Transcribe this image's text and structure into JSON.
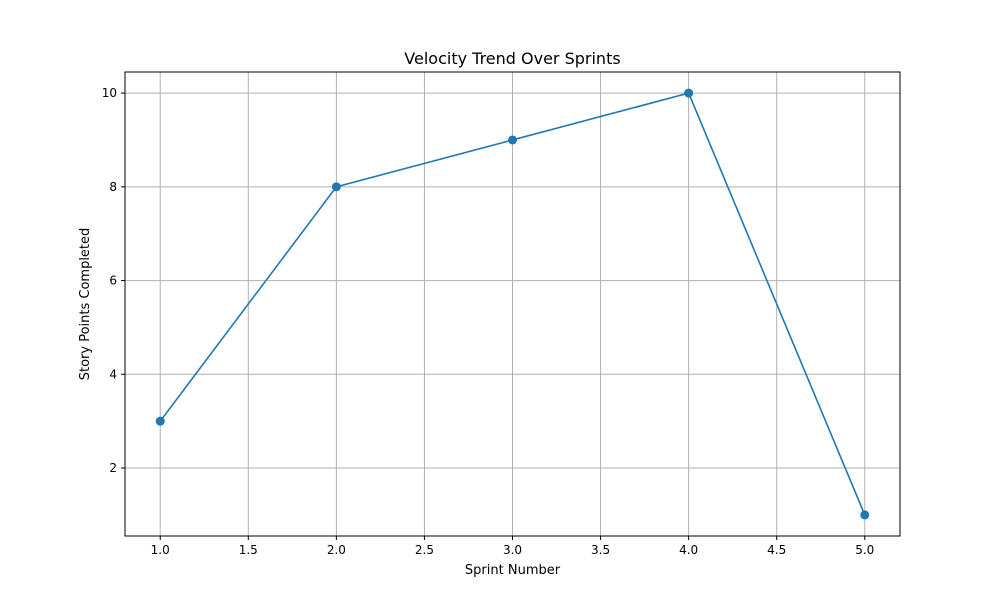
{
  "chart_data": {
    "type": "line",
    "title": "Velocity Trend Over Sprints",
    "xlabel": "Sprint Number",
    "ylabel": "Story Points Completed",
    "x": [
      1,
      2,
      3,
      4,
      5
    ],
    "series": [
      {
        "values": [
          3,
          8,
          9,
          10,
          1
        ],
        "color": "#1f77b4",
        "marker": "circle"
      }
    ],
    "xlim": [
      0.8,
      5.2
    ],
    "ylim": [
      0.55,
      10.45
    ],
    "xticks": [
      1.0,
      1.5,
      2.0,
      2.5,
      3.0,
      3.5,
      4.0,
      4.5,
      5.0
    ],
    "xtick_labels": [
      "1.0",
      "1.5",
      "2.0",
      "2.5",
      "3.0",
      "3.5",
      "4.0",
      "4.5",
      "5.0"
    ],
    "yticks": [
      2,
      4,
      6,
      8,
      10
    ],
    "ytick_labels": [
      "2",
      "4",
      "6",
      "8",
      "10"
    ],
    "grid": true,
    "grid_color": "#b0b0b0"
  }
}
